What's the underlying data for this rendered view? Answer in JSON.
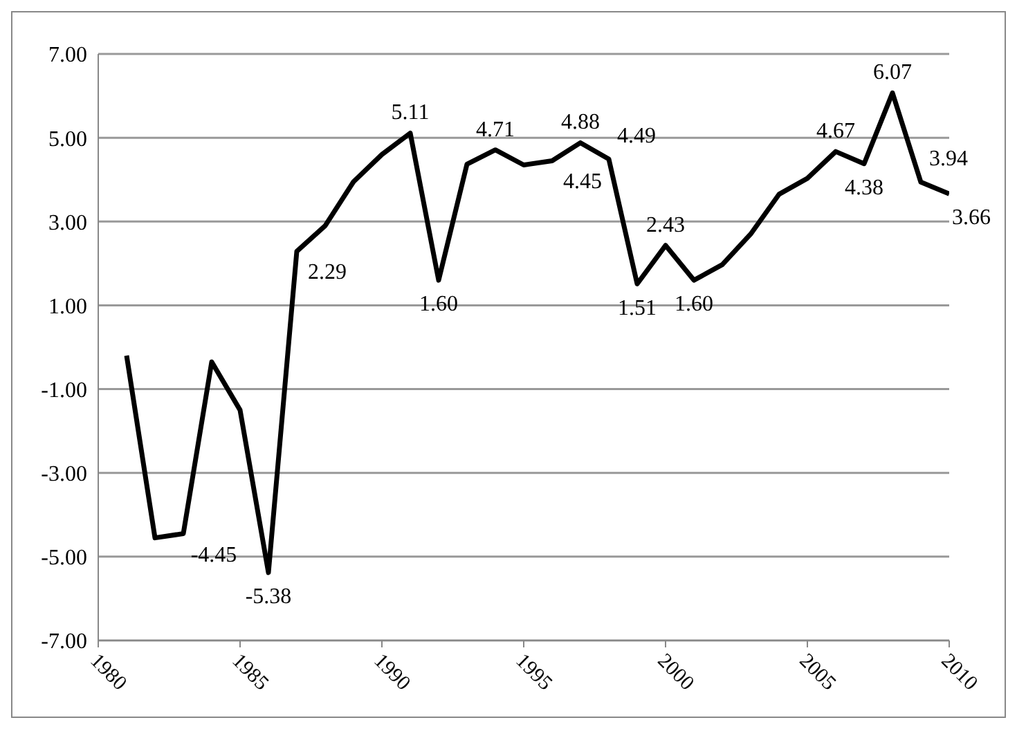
{
  "chart_data": {
    "type": "line",
    "x": [
      1981,
      1982,
      1983,
      1984,
      1985,
      1986,
      1987,
      1988,
      1989,
      1990,
      1991,
      1992,
      1993,
      1994,
      1995,
      1996,
      1997,
      1998,
      1999,
      2000,
      2001,
      2002,
      2003,
      2004,
      2005,
      2006,
      2007,
      2008,
      2009,
      2010
    ],
    "series": [
      {
        "color": "#000000",
        "values": [
          -0.2,
          -4.55,
          -4.45,
          -0.35,
          -1.5,
          -5.38,
          2.29,
          2.9,
          3.95,
          4.6,
          5.11,
          1.6,
          4.37,
          4.71,
          4.35,
          4.45,
          4.88,
          4.49,
          1.51,
          2.43,
          1.6,
          1.97,
          2.7,
          3.65,
          4.03,
          4.67,
          4.38,
          6.07,
          3.94,
          3.66
        ],
        "value_labels": [
          null,
          null,
          "-4.45",
          null,
          null,
          "-5.38",
          "2.29",
          null,
          null,
          null,
          "5.11",
          "1.60",
          null,
          "4.71",
          null,
          "4.45",
          "4.88",
          "4.49",
          "1.51",
          "2.43",
          "1.60",
          null,
          null,
          null,
          null,
          "4.67",
          "4.38",
          "6.07",
          "3.94",
          "3.66"
        ]
      }
    ],
    "xlim": [
      1980,
      2010
    ],
    "xticks": [
      1980,
      1985,
      1990,
      1995,
      2000,
      2005,
      2010
    ],
    "ylim": [
      -7,
      7
    ],
    "yticks": [
      {
        "value": -7,
        "label": "-7.00"
      },
      {
        "value": -5,
        "label": "-5.00"
      },
      {
        "value": -3,
        "label": "-3.00"
      },
      {
        "value": -1,
        "label": "-1.00"
      },
      {
        "value": 1,
        "label": "1.00"
      },
      {
        "value": 3,
        "label": "3.00"
      },
      {
        "value": 5,
        "label": "5.00"
      },
      {
        "value": 7,
        "label": "7.00"
      }
    ],
    "grid": "y",
    "legend": false,
    "marker": "none",
    "line_style": "solid"
  }
}
